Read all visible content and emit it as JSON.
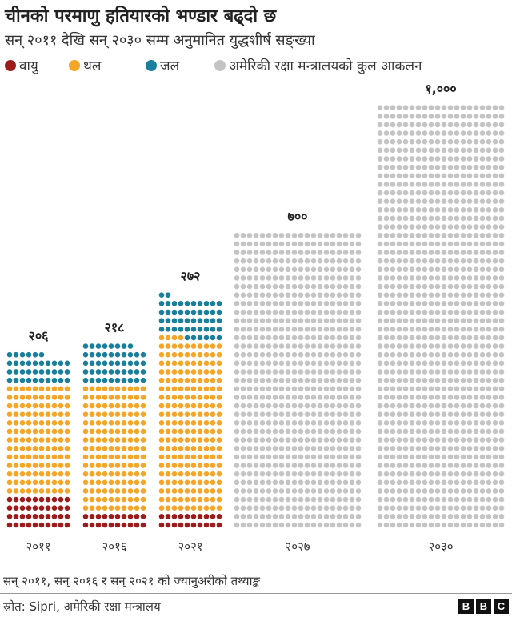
{
  "title": "चीनको परमाणु हतियारको भण्डार बढ्दो छ",
  "subtitle": "सन् २०११ देखि सन् २०३० सम्म अनुमानित युद्धशीर्ष सङ्ख्या",
  "legend": [
    {
      "label": "वायु",
      "color": "#9e1b1b"
    },
    {
      "label": "थल",
      "color": "#f6a526"
    },
    {
      "label": "जल",
      "color": "#1a7f9c"
    },
    {
      "label": "अमेरिकी रक्षा मन्त्रालयको कुल आकलन",
      "color": "#c4c4c4"
    }
  ],
  "chart_data": {
    "type": "dot-matrix",
    "unit": "1 dot = 1 warhead",
    "categories": [
      "२०११",
      "२०१६",
      "२०२१",
      "२०२७",
      "२०३०"
    ],
    "totals_label": [
      "२०६",
      "२१८",
      "२७२",
      "७००",
      "१,०००"
    ],
    "series": [
      {
        "name": "वायु",
        "values": [
          40,
          20,
          20,
          0,
          0
        ]
      },
      {
        "name": "थल",
        "values": [
          130,
          150,
          204,
          0,
          0
        ]
      },
      {
        "name": "जल",
        "values": [
          36,
          48,
          48,
          0,
          0
        ]
      },
      {
        "name": "अमेरिकी रक्षा मन्त्रालयको कुल आकलन",
        "values": [
          0,
          0,
          0,
          700,
          1000
        ]
      }
    ],
    "dots_per_row": [
      10,
      10,
      10,
      20,
      20
    ]
  },
  "note": "सन् २०११, सन् २०१६ र सन् २०२१ को ज्यानुअरीको तथ्याङ्क",
  "source": "स्रोत: Sipri, अमेरिकी रक्षा मन्त्रालय",
  "logo": [
    "B",
    "B",
    "C"
  ]
}
